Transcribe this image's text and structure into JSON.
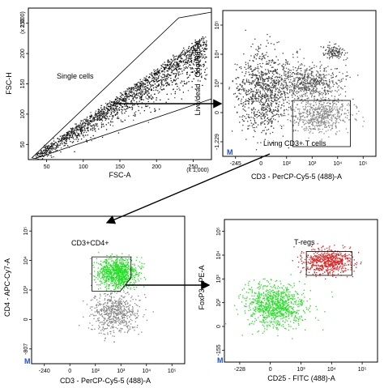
{
  "chart_data": [
    {
      "type": "scatter",
      "panel": "top-left",
      "xlabel": "FSC-A",
      "ylabel": "FSC-H",
      "x_ticks": [
        "50",
        "100",
        "150",
        "200",
        "250"
      ],
      "y_ticks": [
        "50",
        "100",
        "150",
        "200",
        "250"
      ],
      "x_multiplier": "(x 1,000)",
      "y_multiplier": "(x 1,000)",
      "xlim": [
        0,
        262
      ],
      "ylim": [
        0,
        262
      ],
      "gates": [
        {
          "name": "Single cells",
          "polygon": [
            [
              5,
              3
            ],
            [
              215,
              245
            ],
            [
              262,
              255
            ],
            [
              262,
              105
            ],
            [
              10,
              2
            ]
          ]
        }
      ],
      "populations": [
        {
          "shape": "diagonal-band",
          "from": [
            10,
            10
          ],
          "to": [
            255,
            245
          ],
          "width": 30,
          "color": "#000000"
        }
      ]
    },
    {
      "type": "scatter",
      "panel": "top-right",
      "xlabel": "CD3 - PerCP-Cy5-5 (488)-A",
      "ylabel": "Live/dead - Qdot 605-A",
      "x_ticks": [
        "-245",
        "0",
        "10²",
        "10³",
        "10⁴",
        "10⁵"
      ],
      "y_ticks": [
        "-1,229",
        "0",
        "10³",
        "10⁴",
        "10⁵"
      ],
      "gates": [
        {
          "name": "Living CD3+ T cells",
          "rect": {
            "x0": 2.1,
            "x1": 4.25,
            "y0": -0.4,
            "y1": 1.5
          }
        }
      ],
      "populations": [
        {
          "center": [
            1.0,
            1.9
          ],
          "spread": [
            0.5,
            0.8
          ],
          "color": "#3a3a3a"
        },
        {
          "center": [
            3.1,
            0.9
          ],
          "spread": [
            0.55,
            0.35
          ],
          "color": "#888888"
        },
        {
          "center": [
            2.7,
            2.3
          ],
          "spread": [
            0.6,
            0.35
          ],
          "color": "#555555"
        },
        {
          "center": [
            3.6,
            3.5
          ],
          "spread": [
            0.2,
            0.15
          ],
          "color": "#444444"
        }
      ]
    },
    {
      "type": "scatter",
      "panel": "bottom-left",
      "xlabel": "CD3 - PerCP-Cy5-5 (488)-A",
      "ylabel": "CD4 - APC-Cy7-A",
      "x_ticks": [
        "-240",
        "0",
        "10²",
        "10³",
        "10⁴",
        "10⁵"
      ],
      "y_ticks": [
        "-807",
        "0",
        "10³",
        "10⁴",
        "10⁵"
      ],
      "gates": [
        {
          "name": "CD3+CD4+",
          "polygon": [
            [
              1.75,
              3.55
            ],
            [
              3.2,
              3.55
            ],
            [
              3.2,
              2.7
            ],
            [
              2.8,
              2.15
            ],
            [
              1.75,
              2.15
            ]
          ]
        }
      ],
      "populations": [
        {
          "center": [
            2.7,
            2.9
          ],
          "spread": [
            0.35,
            0.3
          ],
          "color": "#22e022"
        },
        {
          "center": [
            2.6,
            1.3
          ],
          "spread": [
            0.45,
            0.45
          ],
          "color": "#888888"
        }
      ]
    },
    {
      "type": "scatter",
      "panel": "bottom-right",
      "xlabel": "CD25 - FITC (488)-A",
      "ylabel": "FoxP3 - PE-A",
      "x_ticks": [
        "-228",
        "0",
        "10³",
        "10⁴",
        "10⁵"
      ],
      "y_ticks": [
        "-155",
        "0",
        "10²",
        "10³",
        "10⁴",
        "10⁵"
      ],
      "gates": [
        {
          "name": "T-regs",
          "rect": {
            "x0": 2.55,
            "x1": 4.25,
            "y0": 2.85,
            "y1": 3.85
          }
        }
      ],
      "populations": [
        {
          "center": [
            1.4,
            1.6
          ],
          "spread": [
            0.55,
            0.45
          ],
          "color": "#22e022"
        },
        {
          "center": [
            3.3,
            3.45
          ],
          "spread": [
            0.45,
            0.25
          ],
          "color": "#dd2222"
        }
      ]
    }
  ],
  "axis_corner_mark": "M"
}
